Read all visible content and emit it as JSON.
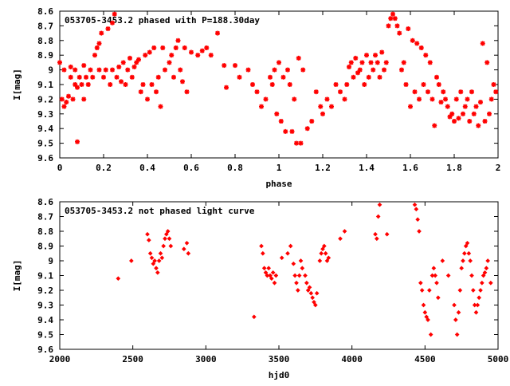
{
  "chart_data": [
    {
      "type": "scatter",
      "title": "053705-3453.2 phased with P=188.30day",
      "xlabel": "phase",
      "ylabel": "I[mag]",
      "xlim": [
        0,
        2
      ],
      "ylim": [
        9.6,
        8.6
      ],
      "y_inverted": true,
      "grid": false,
      "marker": "asterisk",
      "color": "#ff0000",
      "xticks": [
        "0",
        "0.2",
        "0.4",
        "0.6",
        "0.8",
        "1",
        "1.2",
        "1.4",
        "1.6",
        "1.8",
        "2"
      ],
      "yticks": [
        "8.6",
        "8.7",
        "8.8",
        "8.9",
        "9",
        "9.1",
        "9.2",
        "9.3",
        "9.4",
        "9.5",
        "9.6"
      ],
      "points": [
        [
          0.0,
          8.95
        ],
        [
          0.01,
          9.2
        ],
        [
          0.02,
          9.25
        ],
        [
          0.02,
          9.0
        ],
        [
          0.03,
          9.22
        ],
        [
          0.04,
          9.18
        ],
        [
          0.05,
          8.98
        ],
        [
          0.05,
          9.05
        ],
        [
          0.06,
          9.2
        ],
        [
          0.07,
          9.1
        ],
        [
          0.07,
          9.0
        ],
        [
          0.08,
          9.49
        ],
        [
          0.08,
          9.12
        ],
        [
          0.09,
          9.05
        ],
        [
          0.1,
          9.1
        ],
        [
          0.11,
          8.97
        ],
        [
          0.11,
          9.2
        ],
        [
          0.12,
          9.05
        ],
        [
          0.13,
          9.1
        ],
        [
          0.14,
          9.0
        ],
        [
          0.15,
          9.05
        ],
        [
          0.16,
          8.9
        ],
        [
          0.17,
          8.85
        ],
        [
          0.18,
          9.0
        ],
        [
          0.18,
          8.82
        ],
        [
          0.19,
          8.75
        ],
        [
          0.2,
          9.05
        ],
        [
          0.21,
          9.0
        ],
        [
          0.22,
          8.72
        ],
        [
          0.23,
          9.1
        ],
        [
          0.24,
          8.68
        ],
        [
          0.24,
          9.0
        ],
        [
          0.25,
          8.62
        ],
        [
          0.26,
          9.05
        ],
        [
          0.27,
          8.98
        ],
        [
          0.28,
          9.08
        ],
        [
          0.29,
          8.95
        ],
        [
          0.3,
          9.1
        ],
        [
          0.31,
          9.0
        ],
        [
          0.32,
          8.92
        ],
        [
          0.33,
          9.05
        ],
        [
          0.34,
          8.98
        ],
        [
          0.35,
          8.95
        ],
        [
          0.36,
          8.93
        ],
        [
          0.37,
          9.15
        ],
        [
          0.38,
          9.1
        ],
        [
          0.39,
          8.9
        ],
        [
          0.4,
          9.2
        ],
        [
          0.41,
          8.88
        ],
        [
          0.42,
          9.1
        ],
        [
          0.43,
          8.85
        ],
        [
          0.44,
          9.15
        ],
        [
          0.45,
          9.05
        ],
        [
          0.46,
          9.25
        ],
        [
          0.47,
          8.85
        ],
        [
          0.48,
          9.0
        ],
        [
          0.5,
          8.95
        ],
        [
          0.51,
          8.9
        ],
        [
          0.52,
          9.05
        ],
        [
          0.53,
          8.85
        ],
        [
          0.54,
          8.8
        ],
        [
          0.55,
          9.0
        ],
        [
          0.56,
          9.08
        ],
        [
          0.57,
          8.85
        ],
        [
          0.58,
          9.15
        ],
        [
          0.6,
          8.88
        ],
        [
          0.63,
          8.9
        ],
        [
          0.65,
          8.87
        ],
        [
          0.67,
          8.85
        ],
        [
          0.69,
          8.9
        ],
        [
          0.72,
          8.75
        ],
        [
          0.75,
          8.97
        ],
        [
          0.76,
          9.12
        ],
        [
          0.8,
          8.97
        ],
        [
          0.82,
          9.05
        ],
        [
          0.86,
          9.0
        ],
        [
          0.88,
          9.1
        ],
        [
          0.9,
          9.15
        ],
        [
          0.92,
          9.25
        ],
        [
          0.94,
          9.2
        ],
        [
          0.96,
          9.05
        ],
        [
          0.97,
          9.1
        ],
        [
          0.98,
          9.0
        ],
        [
          0.99,
          9.3
        ],
        [
          1.0,
          8.95
        ],
        [
          1.01,
          9.35
        ],
        [
          1.02,
          9.05
        ],
        [
          1.03,
          9.42
        ],
        [
          1.04,
          9.0
        ],
        [
          1.05,
          9.1
        ],
        [
          1.06,
          9.42
        ],
        [
          1.07,
          9.2
        ],
        [
          1.08,
          9.5
        ],
        [
          1.09,
          8.92
        ],
        [
          1.1,
          9.5
        ],
        [
          1.11,
          9.0
        ],
        [
          1.13,
          9.4
        ],
        [
          1.15,
          9.35
        ],
        [
          1.17,
          9.15
        ],
        [
          1.19,
          9.25
        ],
        [
          1.2,
          9.3
        ],
        [
          1.22,
          9.2
        ],
        [
          1.24,
          9.25
        ],
        [
          1.26,
          9.1
        ],
        [
          1.28,
          9.15
        ],
        [
          1.3,
          9.2
        ],
        [
          1.31,
          9.1
        ],
        [
          1.32,
          8.98
        ],
        [
          1.33,
          8.95
        ],
        [
          1.34,
          9.05
        ],
        [
          1.35,
          8.92
        ],
        [
          1.36,
          9.02
        ],
        [
          1.37,
          9.0
        ],
        [
          1.38,
          8.95
        ],
        [
          1.39,
          9.1
        ],
        [
          1.4,
          8.9
        ],
        [
          1.41,
          9.05
        ],
        [
          1.42,
          8.95
        ],
        [
          1.43,
          9.0
        ],
        [
          1.44,
          8.9
        ],
        [
          1.45,
          8.95
        ],
        [
          1.46,
          9.05
        ],
        [
          1.47,
          8.88
        ],
        [
          1.48,
          9.0
        ],
        [
          1.49,
          8.95
        ],
        [
          1.5,
          8.7
        ],
        [
          1.51,
          8.65
        ],
        [
          1.52,
          8.62
        ],
        [
          1.53,
          8.65
        ],
        [
          1.54,
          8.7
        ],
        [
          1.55,
          8.75
        ],
        [
          1.56,
          9.0
        ],
        [
          1.57,
          8.95
        ],
        [
          1.58,
          9.1
        ],
        [
          1.59,
          8.72
        ],
        [
          1.6,
          9.25
        ],
        [
          1.61,
          8.8
        ],
        [
          1.62,
          9.15
        ],
        [
          1.63,
          8.82
        ],
        [
          1.64,
          9.2
        ],
        [
          1.65,
          8.85
        ],
        [
          1.66,
          9.1
        ],
        [
          1.67,
          8.9
        ],
        [
          1.68,
          9.15
        ],
        [
          1.69,
          8.95
        ],
        [
          1.7,
          9.2
        ],
        [
          1.71,
          9.38
        ],
        [
          1.72,
          9.05
        ],
        [
          1.73,
          9.1
        ],
        [
          1.74,
          9.22
        ],
        [
          1.75,
          9.15
        ],
        [
          1.76,
          9.2
        ],
        [
          1.77,
          9.25
        ],
        [
          1.78,
          9.32
        ],
        [
          1.79,
          9.3
        ],
        [
          1.8,
          9.35
        ],
        [
          1.81,
          9.2
        ],
        [
          1.82,
          9.33
        ],
        [
          1.83,
          9.15
        ],
        [
          1.84,
          9.3
        ],
        [
          1.85,
          9.25
        ],
        [
          1.86,
          9.2
        ],
        [
          1.87,
          9.35
        ],
        [
          1.88,
          9.15
        ],
        [
          1.89,
          9.3
        ],
        [
          1.9,
          9.25
        ],
        [
          1.91,
          9.38
        ],
        [
          1.92,
          9.22
        ],
        [
          1.93,
          8.82
        ],
        [
          1.94,
          9.35
        ],
        [
          1.95,
          8.95
        ],
        [
          1.96,
          9.3
        ],
        [
          1.97,
          9.2
        ],
        [
          1.98,
          9.1
        ],
        [
          1.99,
          9.15
        ]
      ]
    },
    {
      "type": "scatter",
      "title": "053705-3453.2 not phased light curve",
      "xlabel": "hjd0",
      "ylabel": "I[mag]",
      "xlim": [
        2000,
        5000
      ],
      "ylim": [
        9.6,
        8.6
      ],
      "y_inverted": true,
      "grid": false,
      "marker": "diamond",
      "color": "#ff0000",
      "xticks": [
        "2000",
        "2500",
        "3000",
        "3500",
        "4000",
        "4500",
        "5000"
      ],
      "yticks": [
        "8.6",
        "8.7",
        "8.8",
        "8.9",
        "9",
        "9.1",
        "9.2",
        "9.3",
        "9.4",
        "9.5",
        "9.6"
      ],
      "points": [
        [
          2400,
          9.12
        ],
        [
          2490,
          9.0
        ],
        [
          2600,
          8.82
        ],
        [
          2610,
          8.86
        ],
        [
          2620,
          8.95
        ],
        [
          2630,
          8.98
        ],
        [
          2640,
          9.02
        ],
        [
          2650,
          9.0
        ],
        [
          2660,
          9.05
        ],
        [
          2670,
          9.08
        ],
        [
          2680,
          9.0
        ],
        [
          2690,
          8.95
        ],
        [
          2700,
          8.98
        ],
        [
          2710,
          8.9
        ],
        [
          2720,
          8.85
        ],
        [
          2730,
          8.82
        ],
        [
          2740,
          8.8
        ],
        [
          2750,
          8.85
        ],
        [
          2760,
          8.9
        ],
        [
          2850,
          8.92
        ],
        [
          2870,
          8.88
        ],
        [
          2880,
          8.95
        ],
        [
          3330,
          9.38
        ],
        [
          3380,
          8.9
        ],
        [
          3390,
          8.95
        ],
        [
          3400,
          9.05
        ],
        [
          3410,
          9.08
        ],
        [
          3420,
          9.1
        ],
        [
          3430,
          9.05
        ],
        [
          3440,
          9.1
        ],
        [
          3450,
          9.12
        ],
        [
          3460,
          9.08
        ],
        [
          3470,
          9.15
        ],
        [
          3480,
          9.1
        ],
        [
          3520,
          8.98
        ],
        [
          3560,
          8.95
        ],
        [
          3580,
          8.9
        ],
        [
          3600,
          9.02
        ],
        [
          3610,
          9.1
        ],
        [
          3620,
          9.15
        ],
        [
          3630,
          9.2
        ],
        [
          3640,
          9.1
        ],
        [
          3650,
          9.0
        ],
        [
          3660,
          9.05
        ],
        [
          3680,
          9.1
        ],
        [
          3690,
          9.15
        ],
        [
          3700,
          9.2
        ],
        [
          3710,
          9.18
        ],
        [
          3720,
          9.22
        ],
        [
          3730,
          9.25
        ],
        [
          3740,
          9.28
        ],
        [
          3750,
          9.3
        ],
        [
          3760,
          9.22
        ],
        [
          3780,
          9.0
        ],
        [
          3790,
          8.95
        ],
        [
          3800,
          8.92
        ],
        [
          3810,
          8.9
        ],
        [
          3820,
          8.95
        ],
        [
          3830,
          9.0
        ],
        [
          3840,
          8.98
        ],
        [
          3920,
          8.85
        ],
        [
          3950,
          8.8
        ],
        [
          4160,
          8.82
        ],
        [
          4170,
          8.85
        ],
        [
          4180,
          8.7
        ],
        [
          4190,
          8.62
        ],
        [
          4240,
          8.82
        ],
        [
          4430,
          8.62
        ],
        [
          4440,
          8.65
        ],
        [
          4450,
          8.72
        ],
        [
          4460,
          8.8
        ],
        [
          4470,
          9.15
        ],
        [
          4480,
          9.2
        ],
        [
          4490,
          9.3
        ],
        [
          4500,
          9.35
        ],
        [
          4510,
          9.38
        ],
        [
          4520,
          9.4
        ],
        [
          4530,
          9.2
        ],
        [
          4540,
          9.5
        ],
        [
          4550,
          9.1
        ],
        [
          4560,
          9.05
        ],
        [
          4570,
          9.1
        ],
        [
          4580,
          9.15
        ],
        [
          4590,
          9.25
        ],
        [
          4620,
          9.0
        ],
        [
          4660,
          9.1
        ],
        [
          4700,
          9.3
        ],
        [
          4710,
          9.4
        ],
        [
          4720,
          9.5
        ],
        [
          4730,
          9.35
        ],
        [
          4740,
          9.2
        ],
        [
          4750,
          9.05
        ],
        [
          4760,
          9.0
        ],
        [
          4770,
          8.95
        ],
        [
          4780,
          8.9
        ],
        [
          4790,
          8.88
        ],
        [
          4800,
          8.95
        ],
        [
          4810,
          9.0
        ],
        [
          4820,
          9.1
        ],
        [
          4830,
          9.2
        ],
        [
          4840,
          9.3
        ],
        [
          4850,
          9.35
        ],
        [
          4860,
          9.3
        ],
        [
          4870,
          9.25
        ],
        [
          4880,
          9.2
        ],
        [
          4890,
          9.15
        ],
        [
          4900,
          9.1
        ],
        [
          4910,
          9.08
        ],
        [
          4920,
          9.05
        ],
        [
          4930,
          9.0
        ],
        [
          4950,
          9.15
        ]
      ]
    }
  ]
}
